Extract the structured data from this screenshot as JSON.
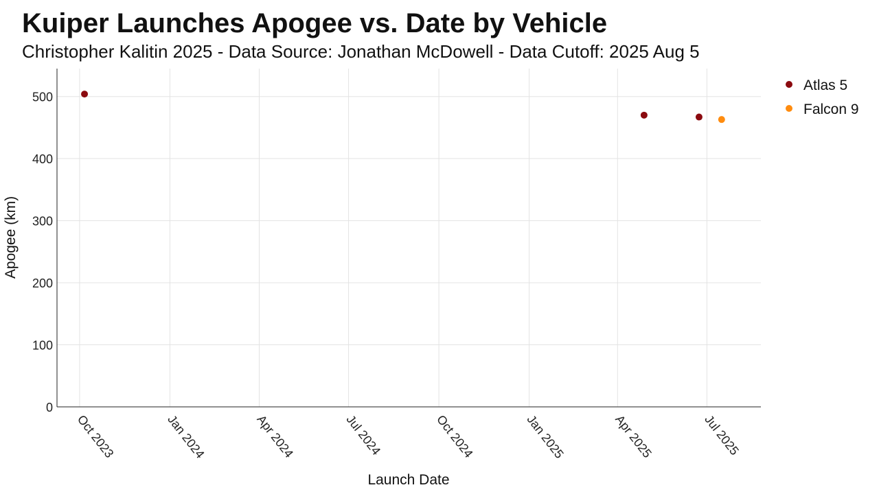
{
  "chart_data": {
    "type": "scatter",
    "title": "Kuiper Launches Apogee vs. Date by Vehicle",
    "subtitle": "Christopher Kalitin 2025 - Data Source: Jonathan McDowell - Data Cutoff: 2025 Aug 5",
    "xlabel": "Launch Date",
    "ylabel": "Apogee (km)",
    "xlim": [
      "2023-09-08",
      "2025-08-25"
    ],
    "ylim": [
      0,
      545
    ],
    "x_ticks": [
      {
        "date": "2023-10-01",
        "label": "Oct 2023"
      },
      {
        "date": "2024-01-01",
        "label": "Jan 2024"
      },
      {
        "date": "2024-04-01",
        "label": "Apr 2024"
      },
      {
        "date": "2024-07-01",
        "label": "Jul 2024"
      },
      {
        "date": "2024-10-01",
        "label": "Oct 2024"
      },
      {
        "date": "2025-01-01",
        "label": "Jan 2025"
      },
      {
        "date": "2025-04-01",
        "label": "Apr 2025"
      },
      {
        "date": "2025-07-01",
        "label": "Jul 2025"
      }
    ],
    "y_ticks": [
      0,
      100,
      200,
      300,
      400,
      500
    ],
    "grid": true,
    "legend_position": "right",
    "series": [
      {
        "name": "Atlas 5",
        "color": "#8b0a0f",
        "points": [
          {
            "x": "2023-10-06",
            "y": 504
          },
          {
            "x": "2025-04-28",
            "y": 470
          },
          {
            "x": "2025-06-23",
            "y": 467
          }
        ]
      },
      {
        "name": "Falcon 9",
        "color": "#ff8c0f",
        "points": [
          {
            "x": "2025-07-16",
            "y": 463
          }
        ]
      }
    ]
  }
}
